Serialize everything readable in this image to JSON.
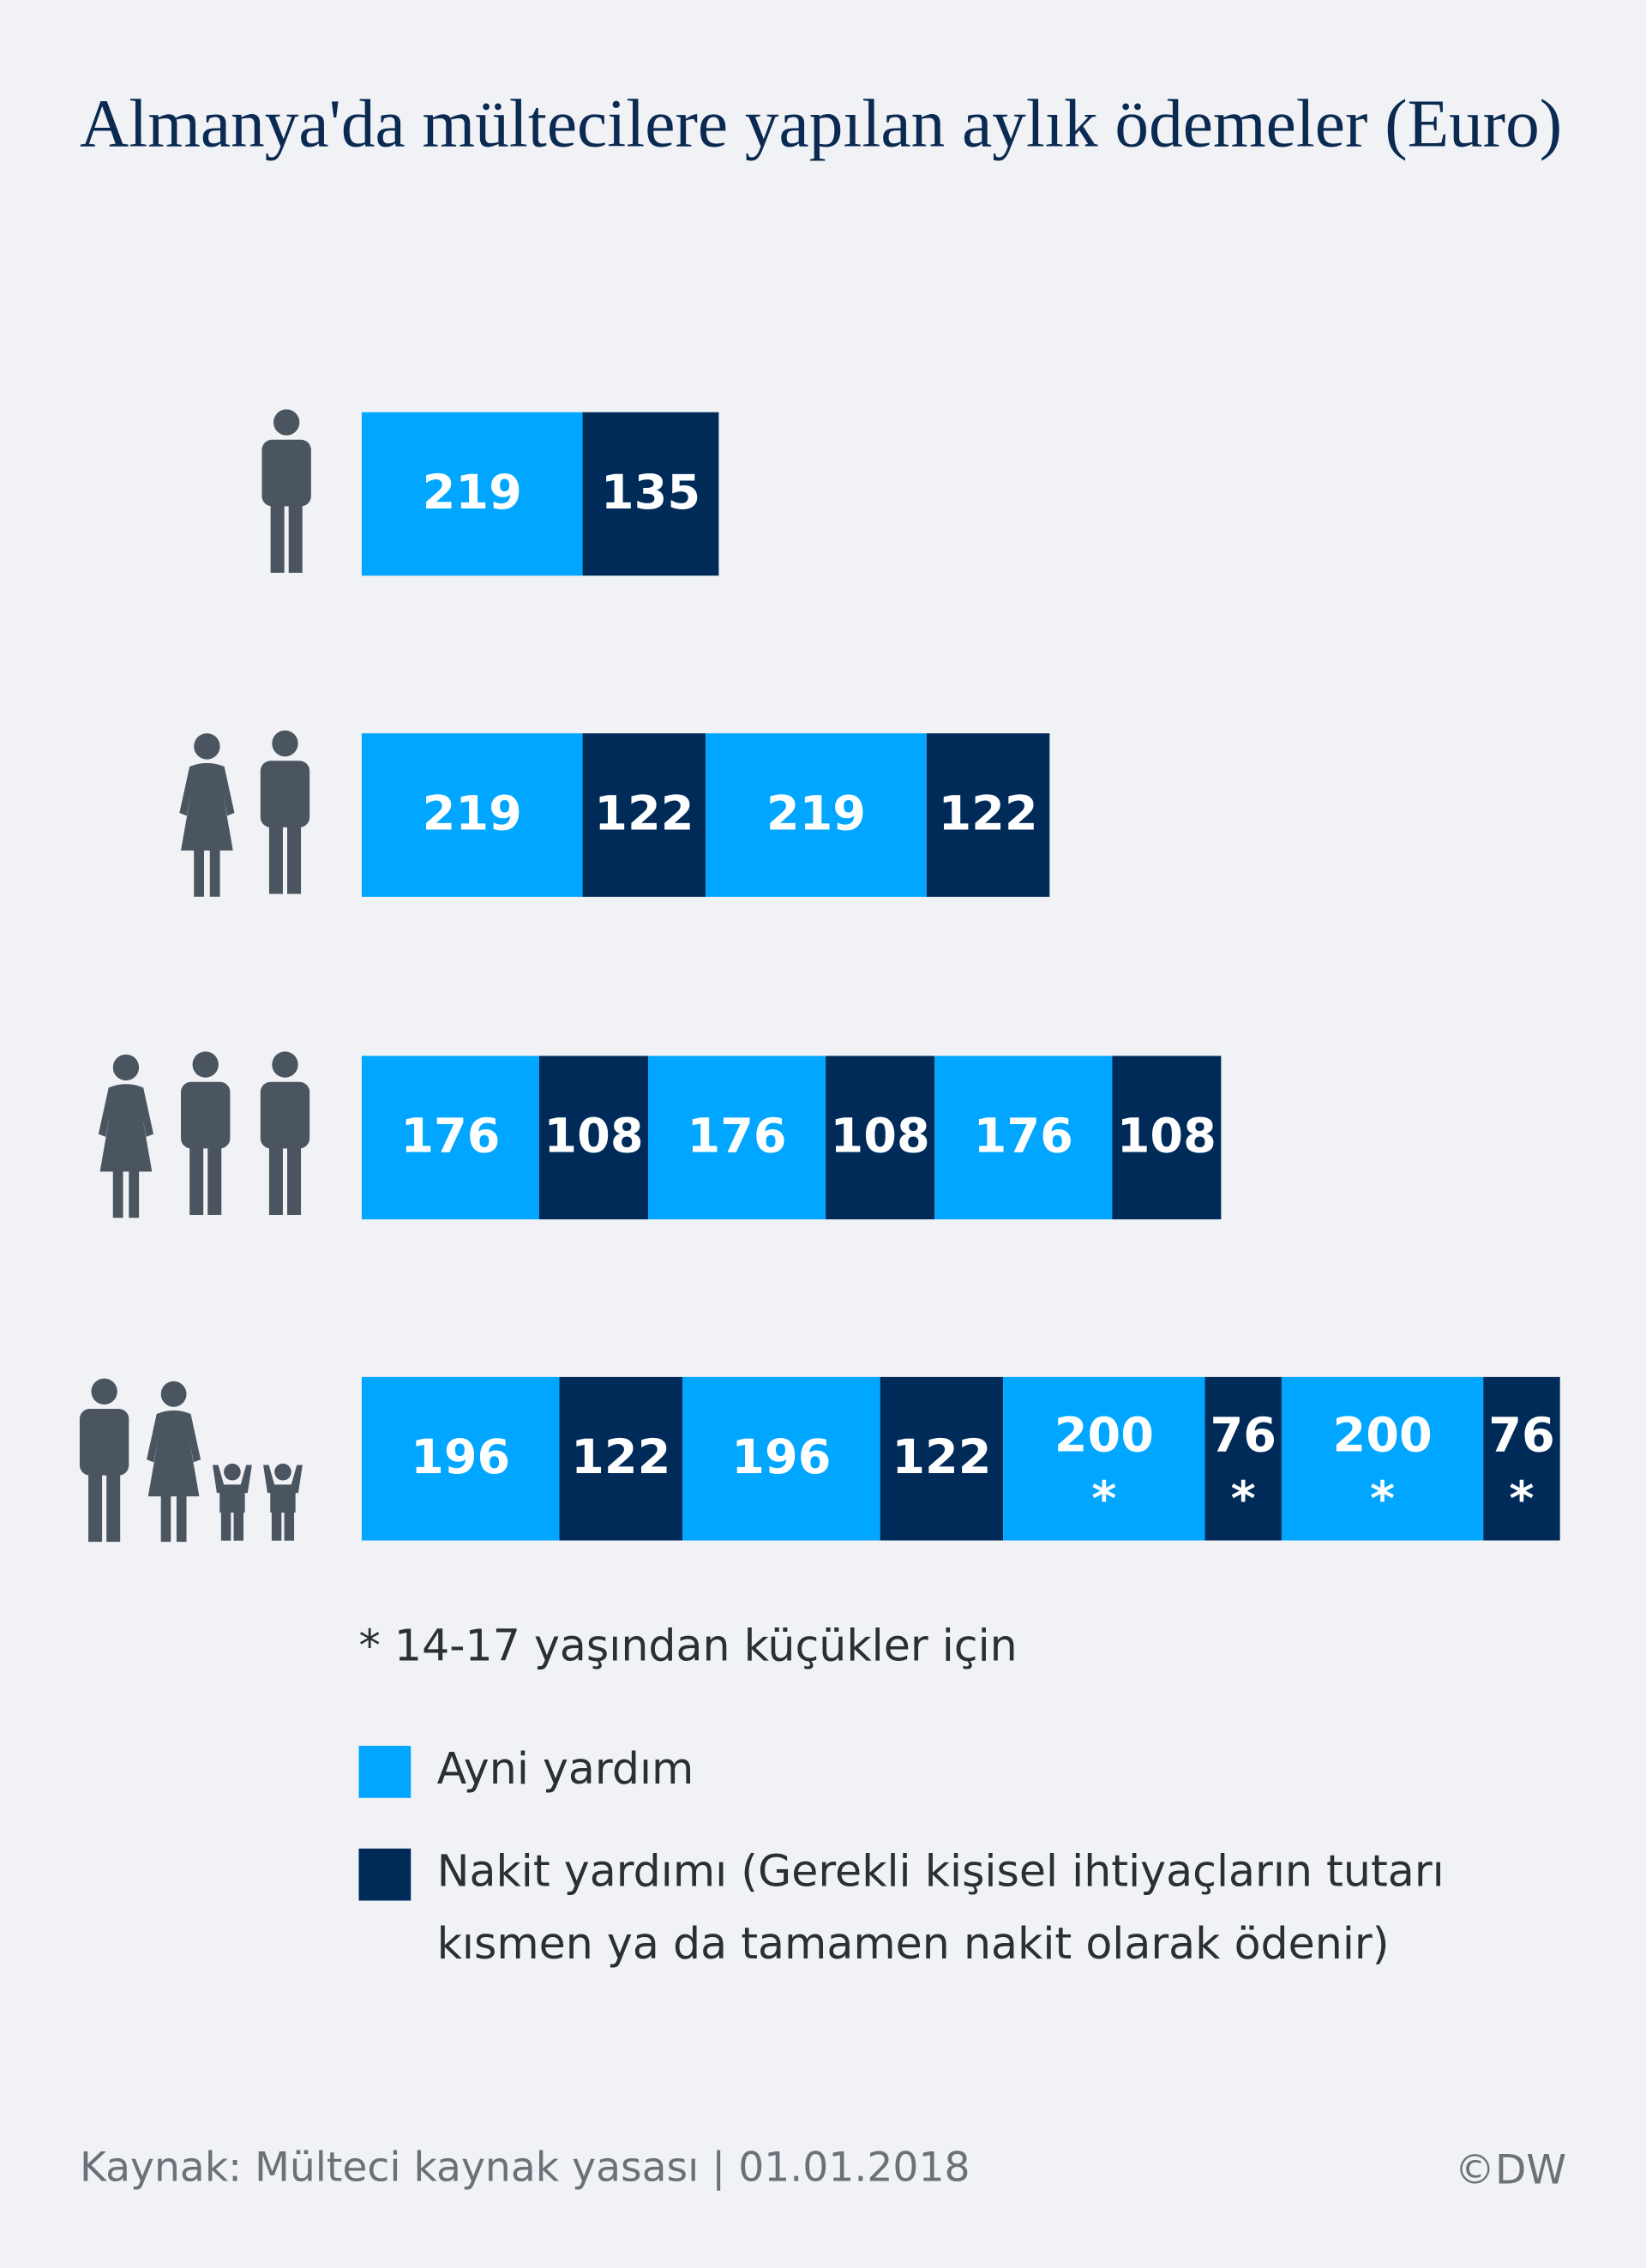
{
  "chart_data": {
    "type": "bar",
    "orientation": "horizontal",
    "stacked": true,
    "title": "Almanya'da mültecilere yapılan aylık ödemeler (Euro)",
    "series": [
      {
        "name": "Ayni yardım",
        "color": "#00a6ff"
      },
      {
        "name": "Nakit yardımı (Gerekli kişisel ihtiyaçların tutarı kısmen ya da tamamen nakit olarak ödenir)",
        "color": "#002a58"
      }
    ],
    "rows": [
      {
        "segments": [
          {
            "value": 219,
            "series": 0
          },
          {
            "value": 135,
            "series": 1
          }
        ]
      },
      {
        "segments": [
          {
            "value": 219,
            "series": 0
          },
          {
            "value": 122,
            "series": 1
          },
          {
            "value": 219,
            "series": 0
          },
          {
            "value": 122,
            "series": 1
          }
        ]
      },
      {
        "segments": [
          {
            "value": 176,
            "series": 0
          },
          {
            "value": 108,
            "series": 1
          },
          {
            "value": 176,
            "series": 0
          },
          {
            "value": 108,
            "series": 1
          },
          {
            "value": 176,
            "series": 0
          },
          {
            "value": 108,
            "series": 1
          }
        ]
      },
      {
        "segments": [
          {
            "value": 196,
            "series": 0
          },
          {
            "value": 122,
            "series": 1
          },
          {
            "value": 196,
            "series": 0
          },
          {
            "value": 122,
            "series": 1
          },
          {
            "value": 200,
            "series": 0,
            "note": "*"
          },
          {
            "value": 76,
            "series": 1,
            "note": "*"
          },
          {
            "value": 200,
            "series": 0,
            "note": "*"
          },
          {
            "value": 76,
            "series": 1,
            "note": "*"
          }
        ]
      }
    ],
    "footnote": "* 14-17 yaşından küçükler için",
    "source": "Kaynak: Mülteci kaynak yasası | 01.01.2018",
    "credit": "©DW"
  }
}
